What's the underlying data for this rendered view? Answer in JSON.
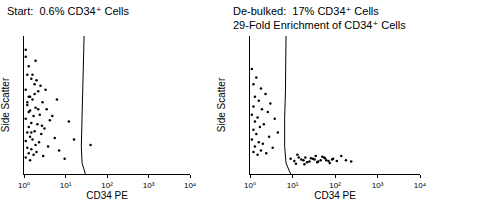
{
  "chart_data": [
    {
      "type": "scatter",
      "title": "Start:  0.6% CD34⁺ Cells",
      "x_label": "CD34 PE",
      "y_label": "Side Scatter",
      "log": "x",
      "tick_labels": "x",
      "color": "#000000",
      "marker": "dot",
      "xlim": [
        1,
        10000
      ],
      "ylim": [
        0,
        1000
      ],
      "xticks": [
        {
          "value": 1,
          "label": "10⁰"
        },
        {
          "value": 10,
          "label": "10¹"
        },
        {
          "value": 100,
          "label": "10²"
        },
        {
          "value": 1000,
          "label": "10³"
        },
        {
          "value": 10000,
          "label": "10⁴"
        }
      ],
      "x": [
        1.1,
        1.3,
        1.2,
        1.5,
        1.8,
        1.1,
        2.2,
        1.4,
        1.6,
        2.8,
        1.2,
        1.9,
        3.5,
        1.3,
        2.4,
        1.7,
        1.1,
        4.2,
        1.5,
        2.1,
        1.3,
        3.1,
        1.8,
        1.2,
        2.6,
        1.4,
        5.5,
        1.6,
        1.1,
        2.3,
        1.9,
        3.8,
        1.2,
        1.5,
        7.0,
        2.0,
        1.3,
        1.7,
        2.9,
        1.1,
        9.5,
        1.4,
        2.5,
        1.8,
        4.8,
        1.2,
        1.6,
        12,
        2.2,
        1.3,
        3.3,
        1.5,
        16,
        1.9,
        1.1,
        2.7,
        6.2,
        1.4,
        40,
        2.0
      ],
      "values": [
        850,
        780,
        720,
        690,
        650,
        610,
        600,
        560,
        540,
        520,
        500,
        480,
        470,
        450,
        430,
        420,
        400,
        390,
        370,
        360,
        340,
        330,
        310,
        300,
        290,
        270,
        260,
        250,
        240,
        230,
        210,
        200,
        190,
        180,
        170,
        160,
        150,
        140,
        130,
        120,
        110,
        100,
        640,
        580,
        420,
        520,
        720,
        380,
        470,
        560,
        610,
        300,
        250,
        820,
        900,
        350,
        540,
        460,
        210,
        680
      ],
      "gate_x": [
        28,
        27,
        26,
        25,
        24,
        25,
        30
      ],
      "gate_y": [
        1000,
        800,
        600,
        400,
        200,
        80,
        0
      ]
    },
    {
      "type": "scatter",
      "title": "De-bulked:  17% CD34⁺ Cells",
      "subtitle": "29-Fold Enrichment of CD34⁺ Cells",
      "x_label": "CD34 PE",
      "y_label": "Side Scatter",
      "log": "x",
      "tick_labels": "x",
      "color": "#000000",
      "marker": "dot",
      "xlim": [
        1,
        10000
      ],
      "ylim": [
        0,
        1000
      ],
      "xticks": [
        {
          "value": 1,
          "label": "10⁰"
        },
        {
          "value": 10,
          "label": "10¹"
        },
        {
          "value": 100,
          "label": "10²"
        },
        {
          "value": 1000,
          "label": "10³"
        },
        {
          "value": 10000,
          "label": "10⁴"
        }
      ],
      "x": [
        1.1,
        1.4,
        1.2,
        1.8,
        2.3,
        1.3,
        1.6,
        3.0,
        1.2,
        1.9,
        2.6,
        1.1,
        1.5,
        3.8,
        1.3,
        2.1,
        1.7,
        1.2,
        4.5,
        1.4,
        2.8,
        1.1,
        1.6,
        2.0,
        1.3,
        3.4,
        1.8,
        1.2,
        2.4,
        1.5,
        9,
        11,
        14,
        18,
        22,
        27,
        33,
        40,
        50,
        62,
        75,
        90,
        110,
        140,
        180,
        240,
        12,
        16,
        20,
        25,
        30,
        38,
        46,
        58,
        70,
        85,
        13,
        19,
        35,
        55
      ],
      "values": [
        760,
        700,
        650,
        620,
        580,
        560,
        530,
        510,
        490,
        470,
        450,
        430,
        410,
        400,
        380,
        360,
        340,
        320,
        300,
        290,
        270,
        250,
        230,
        220,
        200,
        190,
        170,
        160,
        150,
        140,
        110,
        95,
        120,
        100,
        85,
        115,
        105,
        90,
        125,
        100,
        80,
        110,
        95,
        130,
        100,
        90,
        75,
        105,
        120,
        90,
        110,
        85,
        100,
        115,
        95,
        105,
        140,
        70,
        130,
        120
      ],
      "gate_x": [
        7,
        7,
        6.8,
        6.5,
        6.5,
        7,
        9
      ],
      "gate_y": [
        1000,
        800,
        600,
        400,
        200,
        80,
        0
      ]
    }
  ]
}
